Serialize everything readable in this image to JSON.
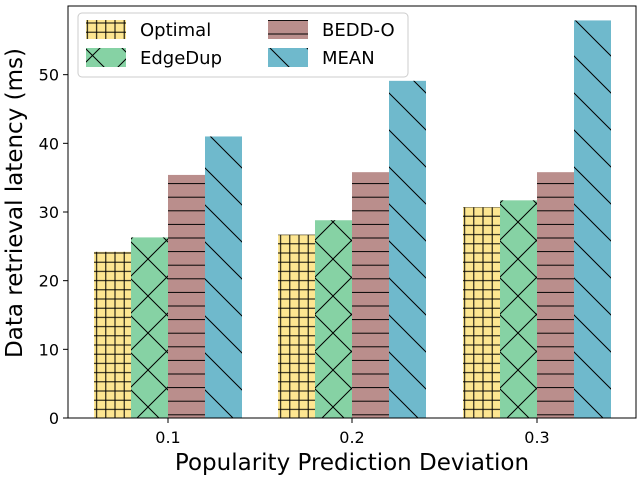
{
  "chart_data": {
    "type": "bar",
    "title": "",
    "xlabel": "Popularity Prediction Deviation",
    "ylabel": "Data retrieval latency (ms)",
    "categories": [
      "0.1",
      "0.2",
      "0.3"
    ],
    "ylim": [
      0,
      60
    ],
    "yticks": [
      0,
      10,
      20,
      30,
      40,
      50
    ],
    "grid": false,
    "legend_position": "top-left",
    "series": [
      {
        "name": "Optimal",
        "values": [
          24.2,
          26.7,
          30.7
        ],
        "color": "#fde691",
        "hatch": "grid"
      },
      {
        "name": "EdgeDup",
        "values": [
          26.3,
          28.8,
          31.7
        ],
        "color": "#86d2a4",
        "hatch": "cross-diagonal"
      },
      {
        "name": "BEDD-O",
        "values": [
          35.4,
          35.8,
          35.8
        ],
        "color": "#ba8e8c",
        "hatch": "horizontal"
      },
      {
        "name": "MEAN",
        "values": [
          41.0,
          49.1,
          57.9
        ],
        "color": "#6fb9cc",
        "hatch": "backslash"
      }
    ]
  }
}
